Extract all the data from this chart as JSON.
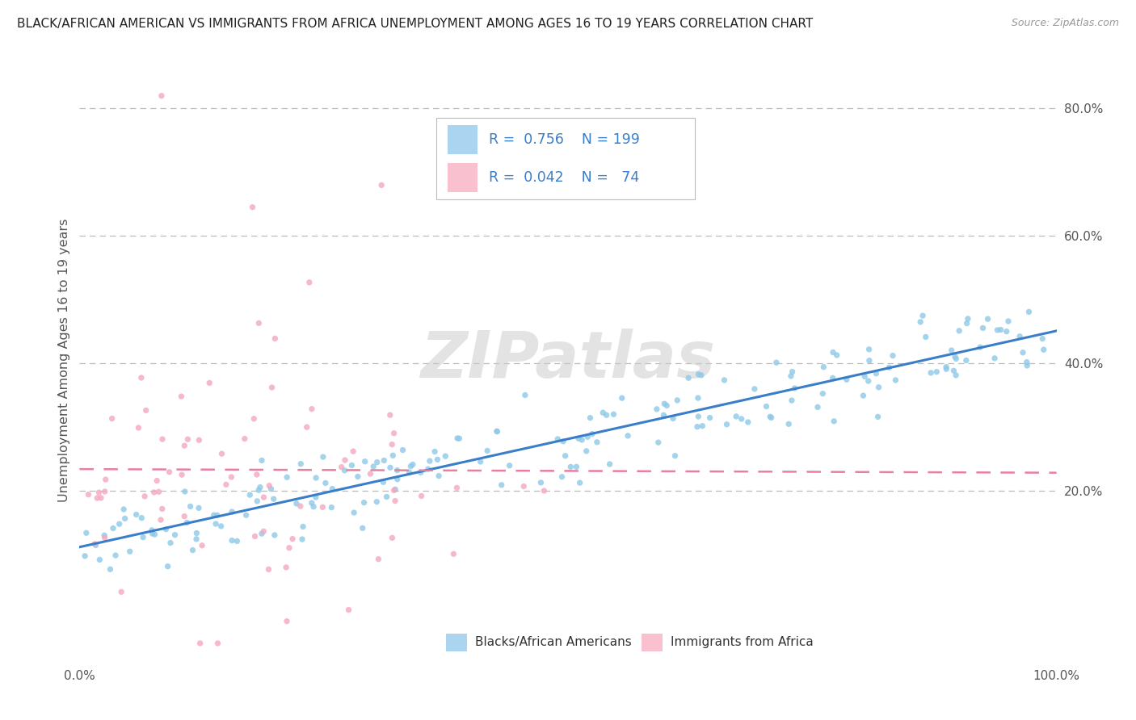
{
  "title": "BLACK/AFRICAN AMERICAN VS IMMIGRANTS FROM AFRICA UNEMPLOYMENT AMONG AGES 16 TO 19 YEARS CORRELATION CHART",
  "source_text": "Source: ZipAtlas.com",
  "ylabel": "Unemployment Among Ages 16 to 19 years",
  "x_min": 0.0,
  "x_max": 1.0,
  "y_min": -0.07,
  "y_max": 0.88,
  "x_tick_labels": [
    "0.0%",
    "100.0%"
  ],
  "y_tick_labels": [
    "20.0%",
    "40.0%",
    "60.0%",
    "80.0%"
  ],
  "y_tick_positions": [
    0.2,
    0.4,
    0.6,
    0.8
  ],
  "blue_R": 0.756,
  "blue_N": 199,
  "pink_R": 0.042,
  "pink_N": 74,
  "blue_scatter_color": "#8ec8e8",
  "pink_scatter_color": "#f4a8bf",
  "blue_line_color": "#3a7dc9",
  "pink_line_color": "#e87fa0",
  "legend_blue_fill": "#aad4f0",
  "legend_pink_fill": "#f9c0d0",
  "watermark": "ZIPatlas",
  "legend_label_blue": "Blacks/African Americans",
  "legend_label_pink": "Immigrants from Africa",
  "background_color": "#ffffff",
  "grid_color": "#bbbbbb",
  "title_color": "#222222",
  "axis_label_color": "#555555",
  "legend_text_color": "#3a7dc9"
}
